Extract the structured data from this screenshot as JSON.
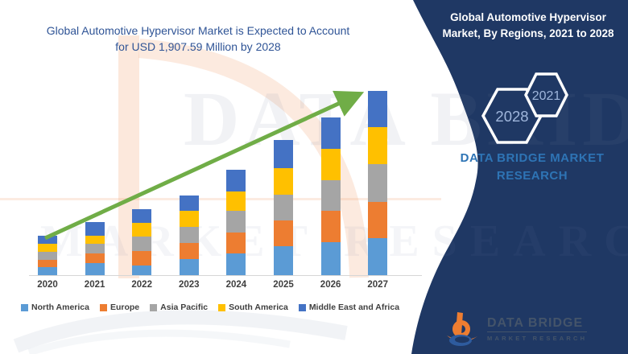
{
  "left_title": {
    "line1": "Global Automotive Hypervisor Market is Expected to Account",
    "line2": "for USD 1,907.59 Million by 2028"
  },
  "right_panel": {
    "heading": "Global Automotive Hypervisor Market, By Regions, 2021 to 2028",
    "hex_small_label": "2021",
    "hex_large_label": "2028",
    "caption": "DATA BRIDGE MARKET RESEARCH"
  },
  "footer_logo": {
    "brand": "DATA BRIDGE",
    "tagline": "MARKET RESEARCH"
  },
  "watermark": {
    "line1": "DATA BRIDGE",
    "line2": "MARKET RESEARCH"
  },
  "colors": {
    "panel_navy": "#1F3864",
    "title_blue": "#2F5496",
    "caption_blue": "#2E74B5",
    "arrow_green": "#70AD47",
    "axis_gray": "#D6D6D6",
    "label_gray": "#404040",
    "hex_label_blue": "#9FB6DC",
    "logo_orange": "#ED7D31",
    "logo_swoosh_blue": "#2E5B9E"
  },
  "chart_data": {
    "type": "bar",
    "stacked": true,
    "title": "Global Automotive Hypervisor Market is Expected to Account for USD 1,907.59 Million by 2028",
    "xlabel": "",
    "ylabel": "",
    "units": "relative stacked-segment heights (no value axis shown in figure)",
    "legend_position": "bottom",
    "grid": false,
    "value_axis_visible": false,
    "trend_arrow": true,
    "categories": [
      "2020",
      "2021",
      "2022",
      "2023",
      "2024",
      "2025",
      "2026",
      "2027"
    ],
    "series": [
      {
        "name": "North America",
        "color": "#5B9BD5",
        "values": [
          10,
          15,
          12,
          20,
          27,
          36,
          41,
          46
        ]
      },
      {
        "name": "Europe",
        "color": "#ED7D31",
        "values": [
          9,
          12,
          18,
          20,
          26,
          32,
          39,
          45
        ]
      },
      {
        "name": "Asia Pacific",
        "color": "#A5A5A5",
        "values": [
          10,
          12,
          18,
          20,
          27,
          32,
          38,
          47
        ]
      },
      {
        "name": "South America",
        "color": "#FFC000",
        "values": [
          10,
          10,
          17,
          20,
          24,
          33,
          39,
          46
        ]
      },
      {
        "name": "Middle East and Africa",
        "color": "#4472C4",
        "values": [
          10,
          17,
          17,
          19,
          27,
          35,
          39,
          45
        ]
      }
    ],
    "totals": [
      49,
      66,
      82,
      99,
      131,
      168,
      196,
      229
    ]
  }
}
